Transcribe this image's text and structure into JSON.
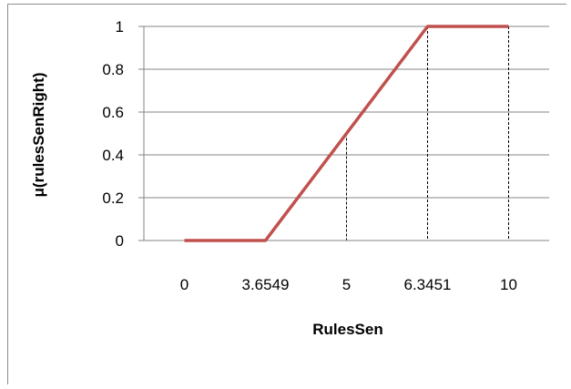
{
  "chart_data": {
    "type": "line",
    "xlabel": "RulesSen",
    "ylabel": "μ(rulesSenRight)",
    "categories": [
      "0",
      "3.6549",
      "5",
      "6.3451",
      "10"
    ],
    "series": [
      {
        "values": [
          0,
          0,
          0.5,
          1,
          1
        ]
      }
    ],
    "ylim": [
      0,
      1
    ],
    "yticks": [
      "0",
      "0.2",
      "0.4",
      "0.6",
      "0.8",
      "1"
    ],
    "drop_lines_at": [
      2,
      3,
      4
    ],
    "grid": "horizontal",
    "legend": "none"
  },
  "colors": {
    "series_line": "#c0504d",
    "grid": "#868686",
    "axis": "#868686",
    "drop_line": "#000000"
  }
}
